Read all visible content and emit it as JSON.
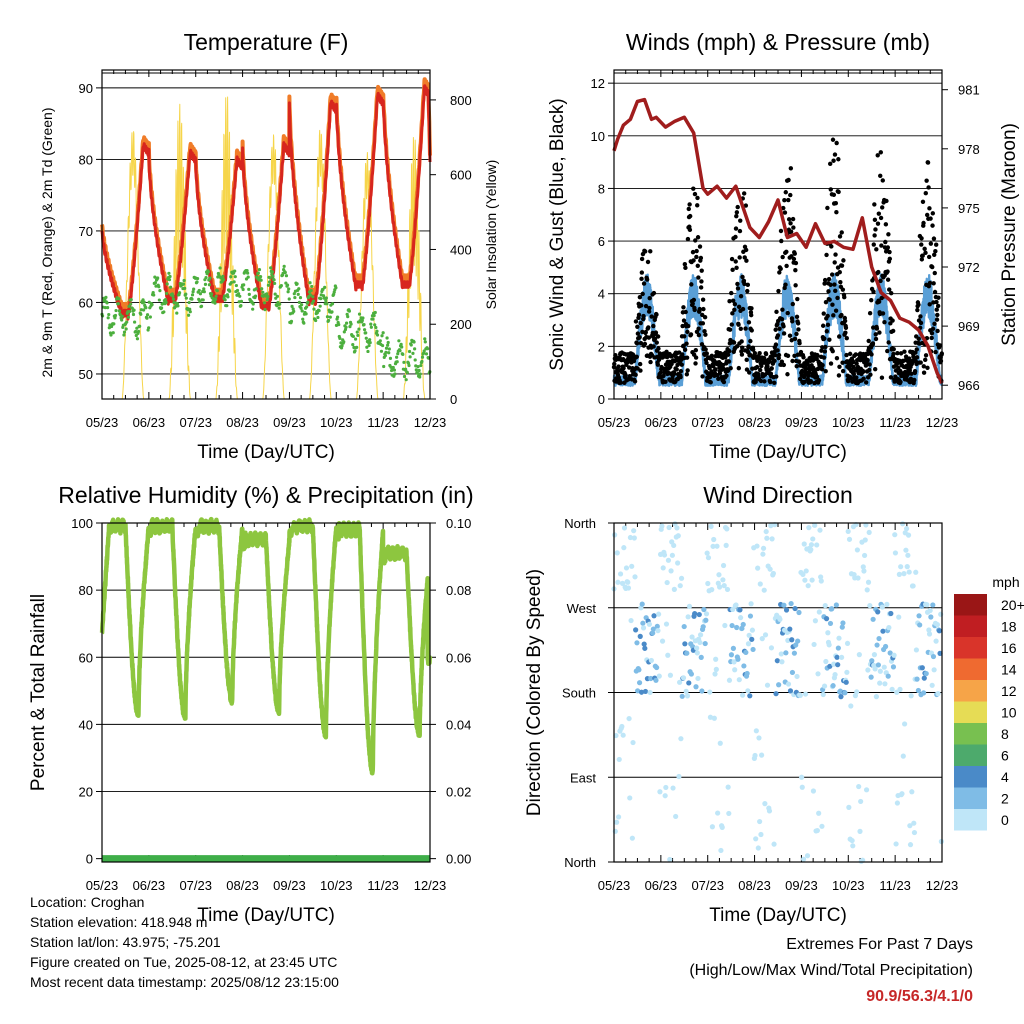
{
  "x_tick_labels": [
    "05/23",
    "06/23",
    "07/23",
    "08/23",
    "09/23",
    "10/23",
    "11/23",
    "12/23"
  ],
  "colors": {
    "temp2m": "#d7261e",
    "temp9m": "#f07c28",
    "dewpoint": "#4caf3e",
    "solar": "#f6d54a",
    "gust": "#000000",
    "wind": "#5a9fd6",
    "pressure": "#a01d1d",
    "rh": "#8dc63f",
    "precip": "#3fae49"
  },
  "chart_data": [
    {
      "id": "temperature",
      "type": "line",
      "title": "Temperature (F)",
      "xlabel": "Time (Day/UTC)",
      "ylabel": "2m & 9m T (Red, Orange) & 2m Td (Green)",
      "y2label": "Solar Insolation (Yellow)",
      "ylim": [
        46.5,
        92.5
      ],
      "yticks": [
        50,
        60,
        70,
        80,
        90
      ],
      "y2lim": [
        0,
        880
      ],
      "y2ticks": [
        0,
        200,
        400,
        600,
        800
      ],
      "grid": true,
      "daily_high_2m": [
        82,
        81,
        80,
        82,
        88,
        89,
        90
      ],
      "daily_low_2m": [
        58,
        60,
        60,
        59,
        60,
        62,
        62,
        63
      ],
      "daily_dewpoint_mean": [
        58,
        61,
        62,
        62,
        60,
        56,
        52,
        61
      ],
      "daily_solar_peak": [
        880,
        790,
        820,
        860,
        880,
        800,
        710,
        880
      ],
      "first_temp": 70,
      "last_temp": 80
    },
    {
      "id": "winds",
      "type": "scatter",
      "title": "Winds (mph) & Pressure (mb)",
      "xlabel": "Time (Day/UTC)",
      "ylabel": "Sonic Wind & Gust (Blue, Black)",
      "y2label": "Station Pressure (Maroon)",
      "ylim": [
        0,
        12.5
      ],
      "yticks": [
        0,
        2,
        4,
        6,
        8,
        10,
        12
      ],
      "y2lim": [
        965.3,
        982
      ],
      "y2ticks": [
        966,
        969,
        972,
        975,
        978,
        981
      ],
      "grid": true,
      "gust_daily_peaks": [
        6.5,
        8.7,
        9.5,
        9.2,
        10.5,
        9.9,
        10.0
      ],
      "pressure": {
        "x": [
          0,
          0.08,
          0.2,
          0.35,
          0.5,
          0.65,
          0.8,
          0.9,
          1.1,
          1.3,
          1.5,
          1.7,
          1.9,
          2.0,
          2.2,
          2.4,
          2.6,
          2.9,
          3.1,
          3.3,
          3.5,
          3.7,
          3.9,
          4.1,
          4.3,
          4.5,
          4.7,
          4.9,
          5.1,
          5.3,
          5.5,
          5.7,
          5.9,
          6.1,
          6.3,
          6.5,
          6.7,
          6.9,
          7.0
        ],
        "y": [
          977.9,
          978.5,
          979.2,
          979.5,
          980.4,
          980.5,
          979.5,
          979.6,
          979.1,
          979.4,
          979.6,
          978.8,
          976.0,
          975.7,
          976.1,
          975.5,
          976.1,
          974.0,
          973.5,
          974.3,
          975.4,
          973.5,
          973.7,
          973.0,
          974.2,
          973.2,
          973.3,
          973.0,
          972.9,
          974.5,
          972.0,
          970.7,
          970.3,
          969.4,
          969.2,
          968.8,
          968.0,
          966.6,
          966.1
        ]
      }
    },
    {
      "id": "humidity",
      "type": "line",
      "title": "Relative Humidity (%) & Precipitation (in)",
      "xlabel": "Time (Day/UTC)",
      "ylabel": "Percent & Total Rainfall",
      "ylim": [
        -1,
        100
      ],
      "yticks": [
        0,
        20,
        40,
        60,
        80,
        100
      ],
      "y2lim": [
        -0.001,
        0.1
      ],
      "y2ticks": [
        "0.00",
        "0.02",
        "0.04",
        "0.06",
        "0.08",
        "0.10"
      ],
      "grid": true,
      "daily_rh_min": [
        43,
        42,
        47,
        44,
        37,
        26,
        37
      ],
      "daily_rh_max": [
        99,
        99,
        99,
        95,
        99,
        98,
        91
      ],
      "precip_total": 0
    },
    {
      "id": "direction",
      "type": "scatter",
      "title": "Wind Direction",
      "xlabel": "Time (Day/UTC)",
      "ylabel": "Direction (Colored By Speed)",
      "yticks": [
        "North",
        "East",
        "South",
        "West",
        "North"
      ],
      "grid": true,
      "colorbar": {
        "unit": "mph",
        "labels": [
          "0",
          "2",
          "4",
          "6",
          "8",
          "10",
          "12",
          "14",
          "16",
          "18",
          "20+"
        ],
        "colors": [
          "#bfe6f8",
          "#7fbce6",
          "#4a8ac8",
          "#4daa6c",
          "#78c050",
          "#e6dc55",
          "#f6a448",
          "#ef6a30",
          "#d9342a",
          "#c01e22",
          "#9a1616"
        ]
      }
    }
  ],
  "info": {
    "location": "Location: Croghan",
    "elevation": "Station elevation: 418.948 m",
    "latlon": "Station lat/lon: 43.975; -75.201",
    "created": "Figure created on Tue, 2025-08-12, at 23:45 UTC",
    "recent": "Most recent data timestamp: 2025/08/12 23:15:00"
  },
  "extremes": {
    "title": "Extremes For Past 7 Days",
    "subtitle": "(High/Low/Max Wind/Total Precipitation)",
    "values": "90.9/56.3/4.1/0"
  }
}
